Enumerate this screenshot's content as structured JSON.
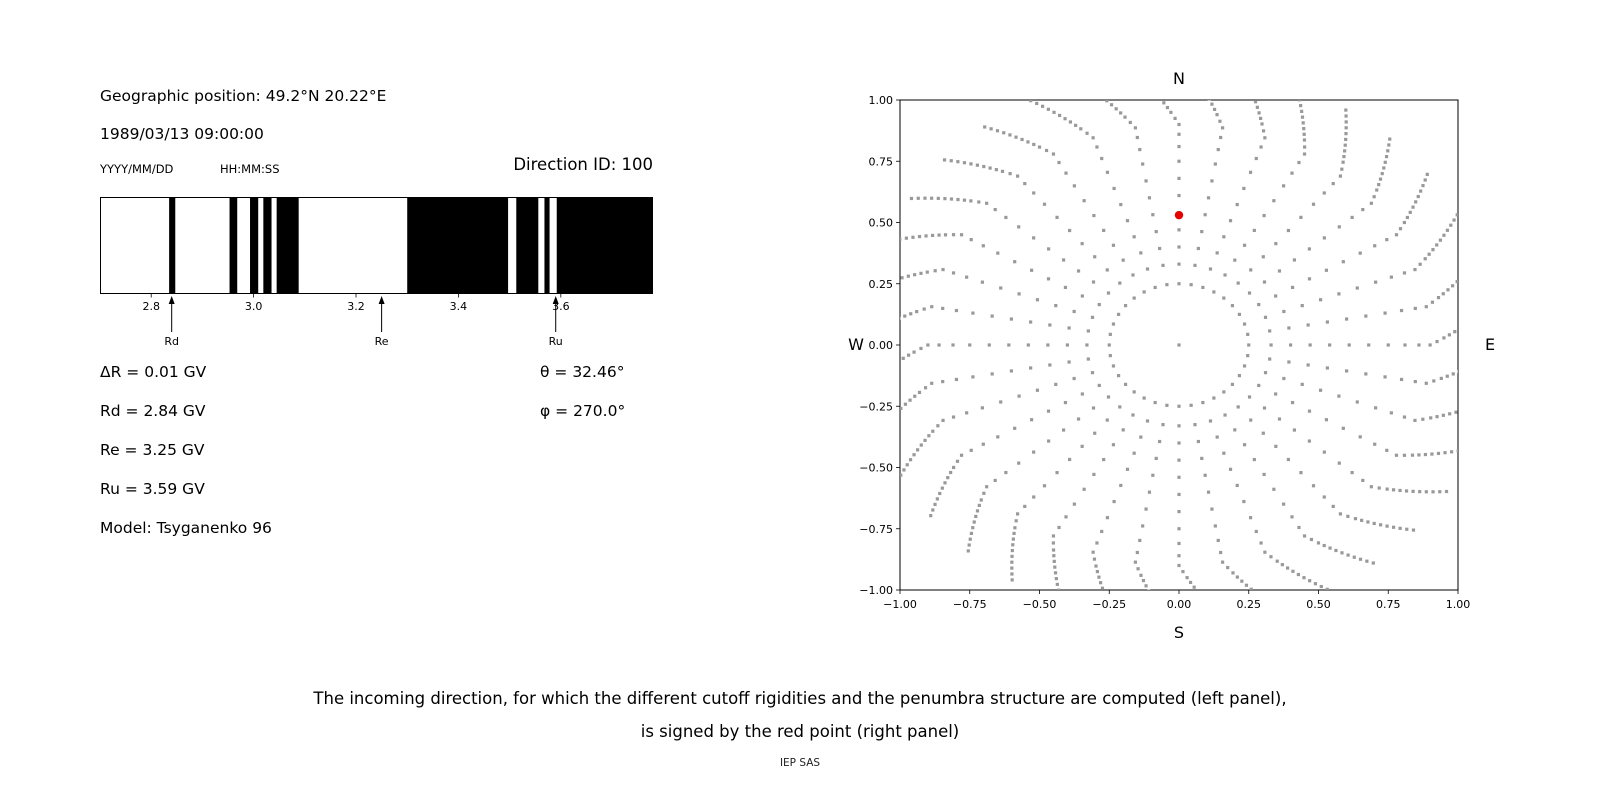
{
  "left_panel": {
    "geo_position": "Geographic position: 49.2°N 20.22°E",
    "datetime": "1989/03/13 09:00:00",
    "date_format_label": "YYYY/MM/DD",
    "time_format_label": "HH:MM:SS",
    "direction_id_label": "Direction ID: 100",
    "delta_r": "ΔR = 0.01 GV",
    "rd": "Rd = 2.84 GV",
    "re": "Re = 3.25 GV",
    "ru": "Ru = 3.59 GV",
    "model": "Model: Tsyganenko 96",
    "theta": "θ = 32.46°",
    "phi": "φ = 270.0°"
  },
  "caption": {
    "line1": "The incoming direction, for which the different cutoff rigidities and the penumbra structure are computed (left panel),",
    "line2": "is signed by the red point (right panel)",
    "credit": "IEP SAS"
  },
  "chart_data": [
    {
      "type": "bar",
      "name": "penumbra-structure",
      "xlim": [
        2.7,
        3.78
      ],
      "xticks": [
        2.8,
        3.0,
        3.2,
        3.4,
        3.6
      ],
      "xtick_labels": [
        "2.8",
        "3.0",
        "3.2",
        "3.4",
        "3.6"
      ],
      "band_color": "#000000",
      "black_bands_gv": [
        [
          2.835,
          2.847
        ],
        [
          2.953,
          2.968
        ],
        [
          2.993,
          3.009
        ],
        [
          3.019,
          3.035
        ],
        [
          3.045,
          3.088
        ],
        [
          3.3,
          3.497
        ],
        [
          3.513,
          3.556
        ],
        [
          3.568,
          3.578
        ],
        [
          3.592,
          3.78
        ]
      ],
      "markers": [
        {
          "label": "Rd",
          "value_gv": 2.84
        },
        {
          "label": "Re",
          "value_gv": 3.25
        },
        {
          "label": "Ru",
          "value_gv": 3.59
        }
      ]
    },
    {
      "type": "scatter",
      "name": "incoming-direction-map",
      "xlim": [
        -1.0,
        1.0
      ],
      "ylim": [
        -1.0,
        1.0
      ],
      "xticks": [
        -1.0,
        -0.75,
        -0.5,
        -0.25,
        0.0,
        0.25,
        0.5,
        0.75,
        1.0
      ],
      "yticks": [
        -1.0,
        -0.75,
        -0.5,
        -0.25,
        0.0,
        0.25,
        0.5,
        0.75,
        1.0
      ],
      "xtick_labels": [
        "−1.00",
        "−0.75",
        "−0.50",
        "−0.25",
        "0.00",
        "0.25",
        "0.50",
        "0.75",
        "1.00"
      ],
      "ytick_labels": [
        "−1.00",
        "−0.75",
        "−0.50",
        "−0.25",
        "0.00",
        "0.25",
        "0.50",
        "0.75",
        "1.00"
      ],
      "compass": {
        "top": "N",
        "bottom": "S",
        "left": "W",
        "right": "E"
      },
      "dot_color": "#999999",
      "grid_pattern": {
        "center_dot": [
          0,
          0
        ],
        "ring_radius": 0.25,
        "ring_count": 36,
        "spoke_count": 36,
        "spoke_step_deg": 10,
        "spoke_radii": [
          0.33,
          0.4,
          0.47,
          0.54,
          0.61,
          0.68,
          0.75,
          0.81,
          0.86,
          0.9,
          0.925,
          0.95,
          0.97,
          0.99,
          1.01,
          1.03,
          1.05,
          1.07,
          1.09,
          1.11,
          1.13
        ],
        "tip_curl_start_r": 0.9,
        "tip_curl_deg_per_unit": 35
      },
      "selected_point": {
        "x": 0.0,
        "y": 0.53,
        "color": "#e60000",
        "label": "Direction ID 100"
      }
    }
  ]
}
